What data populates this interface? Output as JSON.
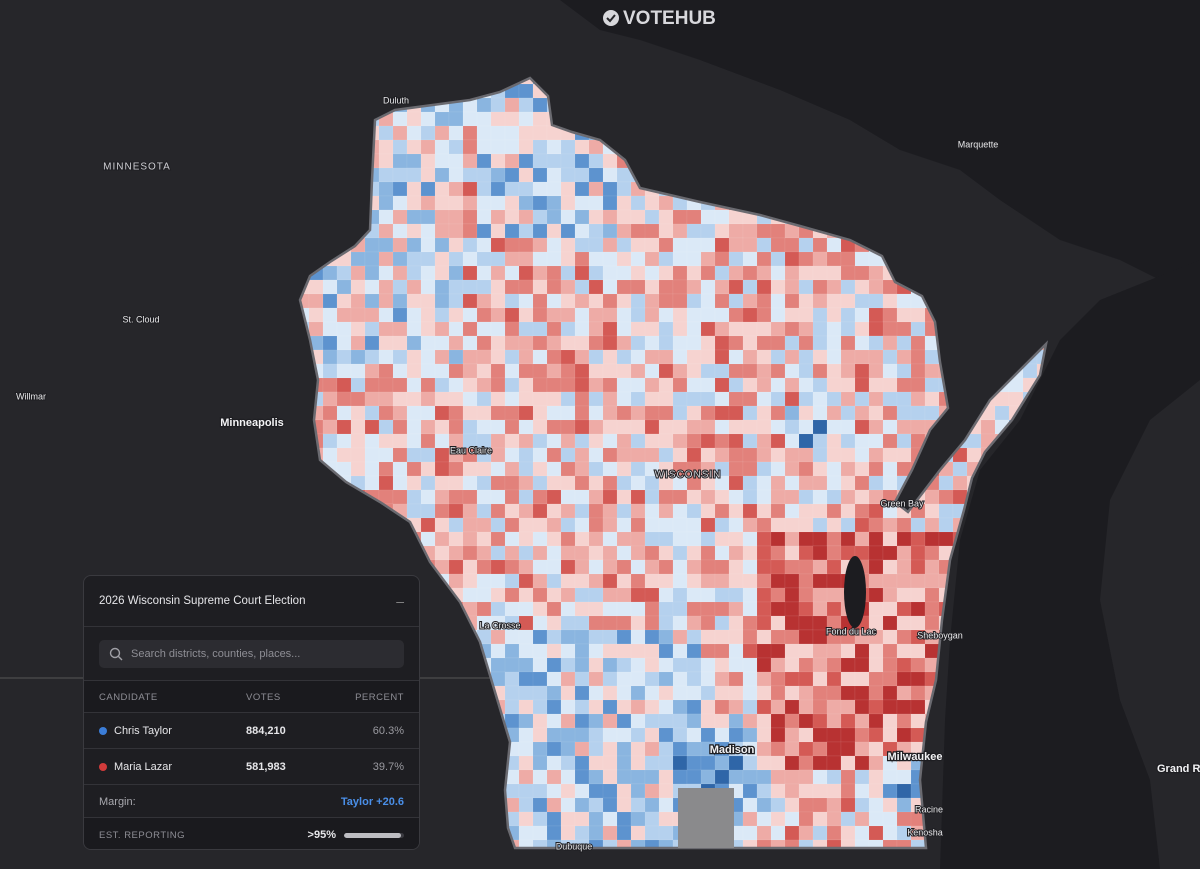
{
  "brand": "VOTEHUB",
  "map_labels": [
    "Duluth",
    "MINNESOTA",
    "Marquette",
    "St. Cloud",
    "Willmar",
    "Minneapolis",
    "Eau Claire",
    "WISCONSIN",
    "Green Bay",
    "La Crosse",
    "Fond du Lac",
    "Sheboygan",
    "Madison",
    "Milwaukee",
    "Racine",
    "Kenosha",
    "Dubuque",
    "Grand Rapids"
  ],
  "panel": {
    "title": "2026 Wisconsin Supreme Court Election",
    "search_placeholder": "Search districts, counties, places...",
    "headers": [
      "CANDIDATE",
      "VOTES",
      "PERCENT"
    ],
    "candidates": [
      {
        "name": "Chris Taylor",
        "color": "#3b7dd8",
        "votes": "884,210",
        "percent": "60.3%"
      },
      {
        "name": "Maria Lazar",
        "color": "#d13b3b",
        "votes": "581,983",
        "percent": "39.7%"
      }
    ],
    "margin_label": "Margin:",
    "margin_value": "Taylor +20.6",
    "reporting_label": "EST. REPORTING",
    "reporting": {
      "value": 95,
      "label": ">95%"
    }
  }
}
